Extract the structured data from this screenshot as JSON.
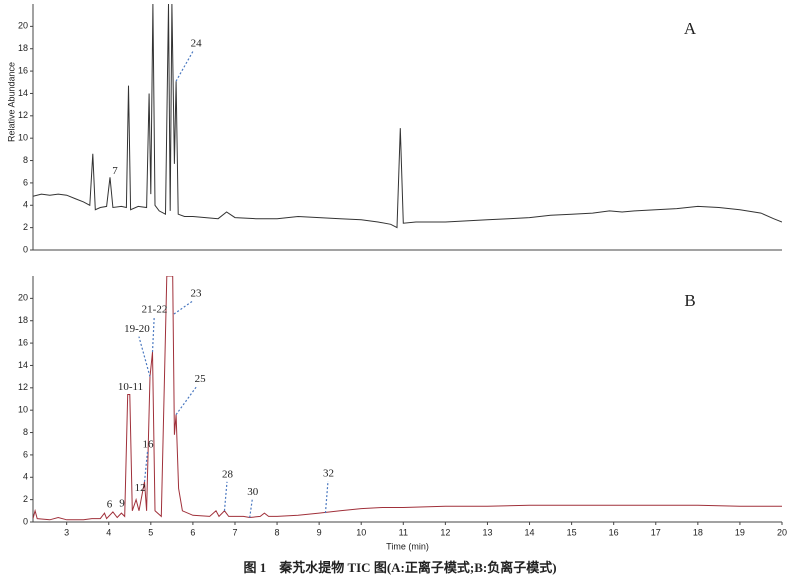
{
  "caption": "图 1　秦艽水提物 TIC 图(A:正离子模式;B:负离子模式)",
  "chart_data": [
    {
      "type": "line",
      "label": "A",
      "y_label": "Relative Abundance",
      "color": "#333333",
      "xlim": [
        2.2,
        20
      ],
      "ylim": [
        0,
        22
      ],
      "yticks": [
        0,
        2,
        4,
        6,
        8,
        10,
        12,
        14,
        16,
        18,
        20
      ],
      "x": [
        2.2,
        2.4,
        2.6,
        2.8,
        3.0,
        3.2,
        3.4,
        3.55,
        3.62,
        3.68,
        3.8,
        3.95,
        4.03,
        4.1,
        4.3,
        4.42,
        4.47,
        4.52,
        4.7,
        4.9,
        4.96,
        5.0,
        5.05,
        5.1,
        5.2,
        5.35,
        5.42,
        5.46,
        5.5,
        5.56,
        5.6,
        5.65,
        5.8,
        6.0,
        6.3,
        6.6,
        6.8,
        7.0,
        7.5,
        8.0,
        8.5,
        9.0,
        9.5,
        10.0,
        10.4,
        10.7,
        10.85,
        10.93,
        11.0,
        11.3,
        12.0,
        12.5,
        13.0,
        13.5,
        14.0,
        14.5,
        15.0,
        15.5,
        15.9,
        16.2,
        16.5,
        17.0,
        17.5,
        18.0,
        18.5,
        19.0,
        19.5,
        19.8,
        20.0
      ],
      "values": [
        4.8,
        5.0,
        4.9,
        5.0,
        4.9,
        4.6,
        4.3,
        4.0,
        8.6,
        3.6,
        3.8,
        3.9,
        6.5,
        3.8,
        3.9,
        3.8,
        14.7,
        3.6,
        3.9,
        3.8,
        14.0,
        5.0,
        22,
        4.0,
        3.5,
        3.2,
        22,
        3.5,
        22,
        7.7,
        15.1,
        3.2,
        3.0,
        3.0,
        2.9,
        2.8,
        3.4,
        2.9,
        2.8,
        2.8,
        3.0,
        2.9,
        2.8,
        2.7,
        2.5,
        2.3,
        2.0,
        10.9,
        2.4,
        2.5,
        2.5,
        2.6,
        2.7,
        2.8,
        2.9,
        3.1,
        3.2,
        3.3,
        3.5,
        3.4,
        3.5,
        3.6,
        3.7,
        3.9,
        3.8,
        3.6,
        3.3,
        2.8,
        2.5
      ],
      "annotations": [
        {
          "text": "7",
          "x": 4.03,
          "y": 6.5
        },
        {
          "text": "24",
          "x": 5.6,
          "y": 15.1
        }
      ]
    },
    {
      "type": "line",
      "label": "B",
      "x_label": "Time (min)",
      "color": "#a0303a",
      "xlim": [
        2.2,
        20
      ],
      "ylim": [
        0,
        22
      ],
      "yticks": [
        0,
        2,
        4,
        6,
        8,
        10,
        12,
        14,
        16,
        18,
        20
      ],
      "xticks": [
        3,
        4,
        5,
        6,
        7,
        8,
        9,
        10,
        11,
        12,
        13,
        14,
        15,
        16,
        17,
        18,
        19,
        20
      ],
      "x": [
        2.2,
        2.25,
        2.3,
        2.6,
        2.8,
        3.0,
        3.4,
        3.6,
        3.8,
        3.9,
        3.95,
        4.1,
        4.2,
        4.3,
        4.38,
        4.45,
        4.5,
        4.56,
        4.65,
        4.72,
        4.85,
        4.9,
        4.98,
        5.04,
        5.1,
        5.25,
        5.38,
        5.52,
        5.56,
        5.6,
        5.66,
        5.75,
        6.0,
        6.4,
        6.55,
        6.62,
        6.75,
        6.85,
        7.2,
        7.35,
        7.6,
        7.7,
        7.8,
        8.0,
        8.5,
        9.0,
        9.5,
        10.0,
        10.5,
        11.0,
        12.0,
        13.0,
        14.0,
        15.0,
        16.0,
        17.0,
        18.0,
        19.0,
        20.0
      ],
      "values": [
        0.3,
        1.0,
        0.3,
        0.2,
        0.4,
        0.2,
        0.2,
        0.3,
        0.3,
        0.8,
        0.3,
        0.9,
        0.4,
        0.8,
        0.5,
        11.4,
        11.4,
        1.0,
        2.0,
        1.0,
        3.6,
        1.0,
        13.0,
        15.2,
        1.0,
        0.5,
        22,
        22,
        7.8,
        9.6,
        3.0,
        1.0,
        0.6,
        0.5,
        1.0,
        0.5,
        1.0,
        0.5,
        0.5,
        0.4,
        0.5,
        0.8,
        0.5,
        0.5,
        0.6,
        0.8,
        1.0,
        1.2,
        1.3,
        1.3,
        1.4,
        1.4,
        1.5,
        1.5,
        1.5,
        1.5,
        1.5,
        1.4,
        1.4
      ],
      "annotations": [
        {
          "text": "6",
          "x": 3.9,
          "y": 0.8
        },
        {
          "text": "9",
          "x": 4.1,
          "y": 0.9
        },
        {
          "text": "12",
          "x": 4.65,
          "y": 2.0
        },
        {
          "text": "16",
          "x": 4.85,
          "y": 3.6
        },
        {
          "text": "10-11",
          "x": 4.47,
          "y": 11.4
        },
        {
          "text": "19-20",
          "x": 4.98,
          "y": 13.0
        },
        {
          "text": "21-22",
          "x": 5.04,
          "y": 15.2
        },
        {
          "text": "23",
          "x": 5.55,
          "y": 18.6
        },
        {
          "text": "25",
          "x": 5.6,
          "y": 9.6
        },
        {
          "text": "28",
          "x": 6.75,
          "y": 1.0
        },
        {
          "text": "30",
          "x": 7.35,
          "y": 0.4
        },
        {
          "text": "32",
          "x": 9.15,
          "y": 0.8
        }
      ]
    }
  ]
}
